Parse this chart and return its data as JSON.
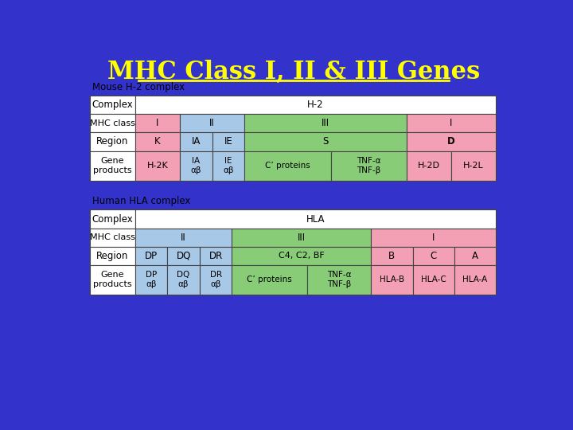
{
  "title": "MHC Class I, II & III Genes",
  "title_color": "#FFFF00",
  "bg_color": "#3333CC",
  "colors": {
    "pink": "#F4A0B4",
    "blue": "#A8C8E8",
    "green": "#88CC77",
    "white": "#FFFFFF"
  },
  "mouse_label": "Mouse H-2 complex",
  "human_label": "Human HLA complex",
  "title_fontsize": 22,
  "label_fontsize": 8.5,
  "cell_fontsize": 8.5,
  "small_fontsize": 7.5
}
